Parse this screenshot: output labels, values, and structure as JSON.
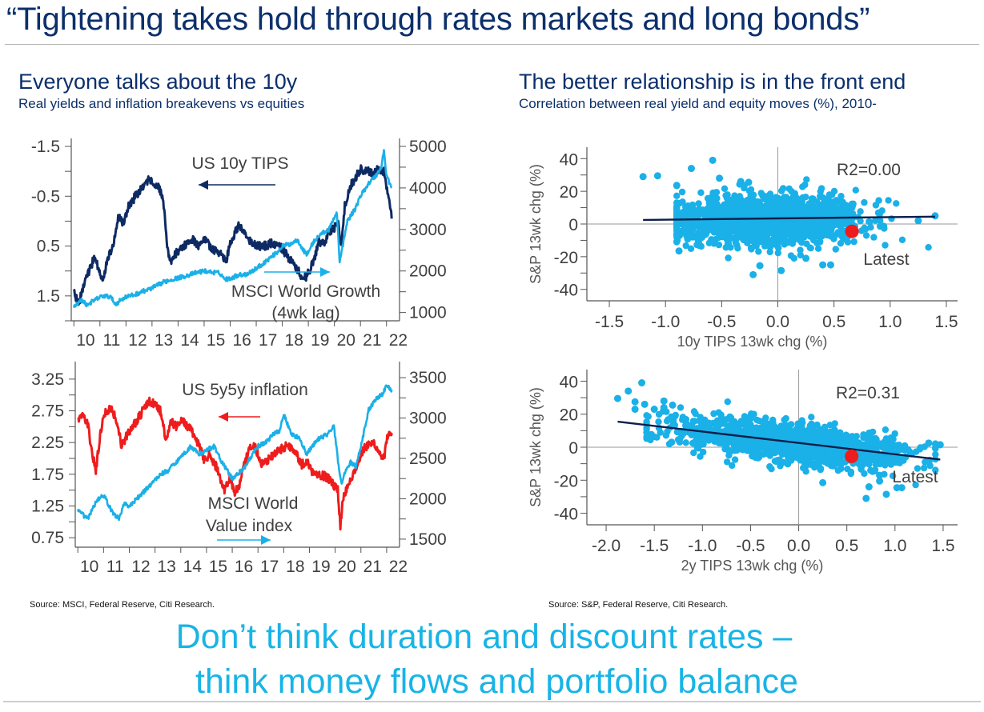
{
  "page": {
    "title": "“Tightening takes hold through rates markets and long bonds”",
    "left_panel": {
      "heading": "Everyone talks about the 10y",
      "subheading": "Real yields and inflation breakevens vs equities",
      "source": "Source: MSCI, Federal Reserve, Citi Research."
    },
    "right_panel": {
      "heading": "The better relationship is in the front end",
      "subheading": "Correlation between real yield and equity moves (%), 2010-",
      "source": "Source: S&P, Federal Reserve, Citi Research."
    },
    "tagline": {
      "line1": "Don’t think duration and discount rates –",
      "line2": "think money flows and portfolio balance"
    },
    "colors": {
      "navy": "#0b2f6b",
      "dark_series": "#0e2a63",
      "light_blue": "#1ab0e8",
      "red": "#ee1c1c",
      "axis": "#555555"
    }
  },
  "chart_data": [
    {
      "id": "tips-vs-growth",
      "type": "line",
      "title": "",
      "x_tick_labels": [
        "10",
        "11",
        "12",
        "13",
        "14",
        "15",
        "16",
        "17",
        "18",
        "19",
        "20",
        "21",
        "22"
      ],
      "x_range": [
        2009.9,
        2022.5
      ],
      "left_axis": {
        "inverted": true,
        "range": [
          -1.5,
          2.0
        ],
        "ticks": [
          -1.5,
          -0.5,
          0.5,
          1.5
        ],
        "minor_step": 0.5
      },
      "right_axis": {
        "range": [
          800,
          5000
        ],
        "ticks": [
          1000,
          2000,
          3000,
          4000,
          5000
        ],
        "minor_step": 500
      },
      "annotations": [
        {
          "text": "US 10y TIPS",
          "color": "#0e2a63",
          "arrow": "left"
        },
        {
          "text": "MSCI World Growth",
          "color": "#1ab0e8",
          "arrow": "right"
        },
        {
          "text": "(4wk lag)",
          "color": "#1ab0e8"
        }
      ],
      "series": [
        {
          "name": "US 10y TIPS",
          "axis": "left",
          "color": "#0e2a63",
          "x": [
            2010.0,
            2010.2,
            2010.4,
            2010.6,
            2010.8,
            2010.95,
            2011.1,
            2011.3,
            2011.5,
            2011.7,
            2011.9,
            2012.1,
            2012.3,
            2012.5,
            2012.7,
            2012.9,
            2013.1,
            2013.3,
            2013.45,
            2013.6,
            2013.7,
            2013.9,
            2014.2,
            2014.5,
            2014.8,
            2015.0,
            2015.3,
            2015.6,
            2015.85,
            2016.0,
            2016.3,
            2016.5,
            2016.8,
            2017.0,
            2017.3,
            2017.6,
            2017.9,
            2018.2,
            2018.5,
            2018.8,
            2018.95,
            2019.2,
            2019.4,
            2019.6,
            2019.8,
            2020.0,
            2020.15,
            2020.25,
            2020.4,
            2020.6,
            2020.8,
            2021.0,
            2021.3,
            2021.5,
            2021.7,
            2021.9,
            2022.1,
            2022.2
          ],
          "y": [
            1.45,
            1.65,
            1.2,
            1.0,
            0.7,
            0.95,
            1.2,
            0.75,
            0.5,
            -0.1,
            0.05,
            -0.3,
            -0.45,
            -0.6,
            -0.75,
            -0.85,
            -0.7,
            -0.65,
            -0.3,
            0.6,
            0.85,
            0.65,
            0.5,
            0.35,
            0.5,
            0.35,
            0.55,
            0.65,
            0.8,
            0.45,
            0.1,
            0.15,
            0.45,
            0.5,
            0.5,
            0.45,
            0.5,
            0.7,
            0.9,
            1.15,
            1.1,
            0.8,
            0.4,
            0.45,
            0.2,
            0.15,
            -0.05,
            0.55,
            -0.3,
            -0.7,
            -0.85,
            -1.05,
            -1.0,
            -0.95,
            -1.05,
            -1.0,
            -0.45,
            -0.05
          ]
        },
        {
          "name": "MSCI World Growth (4wk lag)",
          "axis": "right",
          "color": "#1ab0e8",
          "x": [
            2010.0,
            2010.3,
            2010.5,
            2010.8,
            2011.1,
            2011.4,
            2011.6,
            2011.8,
            2012.0,
            2012.3,
            2012.6,
            2012.9,
            2013.2,
            2013.5,
            2013.8,
            2014.1,
            2014.4,
            2014.7,
            2015.0,
            2015.3,
            2015.6,
            2015.8,
            2016.0,
            2016.3,
            2016.6,
            2016.9,
            2017.2,
            2017.5,
            2017.8,
            2018.0,
            2018.3,
            2018.6,
            2018.8,
            2018.95,
            2019.2,
            2019.5,
            2019.8,
            2020.0,
            2020.1,
            2020.2,
            2020.35,
            2020.5,
            2020.8,
            2021.0,
            2021.3,
            2021.6,
            2021.8,
            2021.9,
            2022.0,
            2022.2
          ],
          "y": [
            1150,
            1300,
            1180,
            1300,
            1400,
            1380,
            1200,
            1300,
            1380,
            1420,
            1500,
            1560,
            1650,
            1750,
            1800,
            1850,
            1900,
            1960,
            2000,
            1970,
            1950,
            1800,
            1820,
            1900,
            1920,
            2020,
            2150,
            2300,
            2450,
            2600,
            2650,
            2750,
            2500,
            2400,
            2700,
            2900,
            3000,
            3300,
            3400,
            2200,
            2700,
            3200,
            3500,
            3800,
            4100,
            4300,
            4500,
            4900,
            4300,
            4000
          ]
        }
      ]
    },
    {
      "id": "inflation-vs-value",
      "type": "line",
      "title": "",
      "x_tick_labels": [
        "10",
        "11",
        "12",
        "13",
        "14",
        "15",
        "16",
        "17",
        "18",
        "19",
        "20",
        "21",
        "22"
      ],
      "x_range": [
        2009.9,
        2022.5
      ],
      "left_axis": {
        "inverted": false,
        "range": [
          0.6,
          3.4
        ],
        "ticks": [
          0.75,
          1.25,
          1.75,
          2.25,
          2.75,
          3.25
        ],
        "minor_step": 0.25
      },
      "right_axis": {
        "range": [
          1400,
          3600
        ],
        "ticks": [
          1500,
          2000,
          2500,
          3000,
          3500
        ],
        "minor_step": 250
      },
      "annotations": [
        {
          "text": "US 5y5y inflation",
          "color": "#ee1c1c",
          "arrow": "left"
        },
        {
          "text": "MSCI World",
          "color": "#1ab0e8"
        },
        {
          "text": "Value index",
          "color": "#1ab0e8",
          "arrow": "right"
        }
      ],
      "series": [
        {
          "name": "US 5y5y inflation",
          "axis": "left",
          "color": "#ee1c1c",
          "x": [
            2010.0,
            2010.2,
            2010.4,
            2010.55,
            2010.7,
            2010.85,
            2011.0,
            2011.3,
            2011.5,
            2011.7,
            2011.9,
            2012.1,
            2012.3,
            2012.6,
            2012.8,
            2013.0,
            2013.2,
            2013.45,
            2013.6,
            2013.8,
            2014.0,
            2014.3,
            2014.6,
            2014.9,
            2015.1,
            2015.4,
            2015.7,
            2015.9,
            2016.1,
            2016.3,
            2016.5,
            2016.7,
            2016.9,
            2017.1,
            2017.3,
            2017.6,
            2017.9,
            2018.1,
            2018.4,
            2018.7,
            2018.9,
            2019.1,
            2019.4,
            2019.7,
            2019.9,
            2020.1,
            2020.2,
            2020.3,
            2020.5,
            2020.7,
            2020.9,
            2021.1,
            2021.3,
            2021.5,
            2021.7,
            2021.9,
            2022.0,
            2022.2
          ],
          "y": [
            2.6,
            2.7,
            2.5,
            2.1,
            1.8,
            2.3,
            2.7,
            2.8,
            2.6,
            2.2,
            2.35,
            2.5,
            2.6,
            2.8,
            2.9,
            2.85,
            2.75,
            2.25,
            2.6,
            2.5,
            2.6,
            2.5,
            2.3,
            2.0,
            2.05,
            1.85,
            1.5,
            1.7,
            1.45,
            1.6,
            1.95,
            2.15,
            2.2,
            1.9,
            1.95,
            2.05,
            2.15,
            2.2,
            2.15,
            1.9,
            1.95,
            1.8,
            1.75,
            1.7,
            1.6,
            1.5,
            0.95,
            1.35,
            1.6,
            1.75,
            1.95,
            2.15,
            2.2,
            2.25,
            2.1,
            2.0,
            2.3,
            2.4
          ]
        },
        {
          "name": "MSCI World Value index",
          "axis": "right",
          "color": "#1ab0e8",
          "x": [
            2010.0,
            2010.2,
            2010.4,
            2010.6,
            2010.8,
            2011.0,
            2011.3,
            2011.6,
            2011.8,
            2012.0,
            2012.3,
            2012.6,
            2012.9,
            2013.2,
            2013.5,
            2013.8,
            2014.1,
            2014.4,
            2014.7,
            2015.0,
            2015.3,
            2015.6,
            2015.8,
            2016.0,
            2016.2,
            2016.5,
            2016.8,
            2017.0,
            2017.3,
            2017.6,
            2017.85,
            2018.0,
            2018.3,
            2018.6,
            2018.9,
            2019.1,
            2019.4,
            2019.7,
            2019.95,
            2020.15,
            2020.25,
            2020.4,
            2020.6,
            2020.8,
            2021.0,
            2021.3,
            2021.6,
            2021.85,
            2022.0,
            2022.2
          ],
          "y": [
            1850,
            1800,
            1750,
            1900,
            2000,
            2050,
            1850,
            1750,
            1950,
            1900,
            2000,
            2100,
            2200,
            2300,
            2350,
            2450,
            2550,
            2650,
            2550,
            2600,
            2650,
            2450,
            2350,
            2250,
            2300,
            2400,
            2550,
            2650,
            2700,
            2800,
            2850,
            3050,
            2800,
            2750,
            2550,
            2650,
            2750,
            2800,
            2900,
            2350,
            2200,
            2350,
            2450,
            2400,
            2650,
            3100,
            3250,
            3300,
            3400,
            3350
          ]
        }
      ]
    },
    {
      "id": "scatter-10y-tips",
      "type": "scatter",
      "xlabel": "10y TIPS 13wk chg (%)",
      "ylabel": "S&P 13wk chg (%)",
      "xlim": [
        -1.7,
        1.6
      ],
      "ylim": [
        -47,
        47
      ],
      "x_ticks": [
        -1.5,
        -1.0,
        -0.5,
        0.0,
        0.5,
        1.0,
        1.5
      ],
      "x_tick_labels": [
        "-1.5",
        "-1.0",
        "-0.5",
        "0.0",
        "0.5",
        "1.0",
        "1.5"
      ],
      "y_ticks": [
        -40,
        -20,
        0,
        20,
        40
      ],
      "y_minor_step": 10,
      "r2_label": "R2=0.00",
      "latest": {
        "x": 0.66,
        "y": -4.5,
        "label": "Latest",
        "color": "#ee1c1c"
      },
      "regression": {
        "x": [
          -1.2,
          1.4
        ],
        "y": [
          2.5,
          4.5
        ]
      },
      "cloud": {
        "x_center": -0.1,
        "x_spread": 0.42,
        "y_slope": 0.8,
        "y_intercept": 3.0,
        "y_spread": 7.5,
        "n": 1500
      },
      "outliers": [
        [
          -1.2,
          29
        ],
        [
          -1.07,
          29.5
        ],
        [
          -0.9,
          23.5
        ],
        [
          -0.77,
          34
        ],
        [
          -0.58,
          39
        ],
        [
          -0.52,
          28
        ],
        [
          -0.33,
          26
        ],
        [
          -0.26,
          25.5
        ],
        [
          -0.3,
          23.5
        ],
        [
          -0.22,
          -31
        ],
        [
          -0.16,
          -25.5
        ],
        [
          0.03,
          -28.5
        ],
        [
          0.25,
          -21
        ],
        [
          0.4,
          -25
        ],
        [
          0.47,
          -25
        ],
        [
          -0.88,
          -16.5
        ],
        [
          -0.78,
          8
        ],
        [
          -0.7,
          9
        ],
        [
          1.4,
          5
        ],
        [
          1.25,
          2
        ],
        [
          0.78,
          -3
        ]
      ],
      "point_color": "#1ab0e8",
      "line_color": "#0b1f4a"
    },
    {
      "id": "scatter-2y-tips",
      "type": "scatter",
      "xlabel": "2y TIPS 13wk chg (%)",
      "ylabel": "S&P 13wk chg (%)",
      "xlim": [
        -2.2,
        1.65
      ],
      "ylim": [
        -47,
        47
      ],
      "x_ticks": [
        -2.0,
        -1.5,
        -1.0,
        -0.5,
        0.0,
        0.5,
        1.0,
        1.5
      ],
      "x_tick_labels": [
        "-2.0",
        "-1.5",
        "-1.0",
        "-0.5",
        "0.0",
        "0.5",
        "1.0",
        "1.5"
      ],
      "y_ticks": [
        -40,
        -20,
        0,
        20,
        40
      ],
      "y_minor_step": 10,
      "r2_label": "R2=0.31",
      "latest": {
        "x": 0.55,
        "y": -5.5,
        "label": "Latest",
        "color": "#ee1c1c"
      },
      "regression": {
        "x": [
          -1.88,
          1.47
        ],
        "y": [
          15.5,
          -7.5
        ]
      },
      "cloud": {
        "x_center": -0.1,
        "x_spread": 0.55,
        "y_slope": -6.9,
        "y_intercept": 2.5,
        "y_spread": 5.5,
        "n": 1500
      },
      "outliers": [
        [
          -1.88,
          29.5
        ],
        [
          -1.77,
          34
        ],
        [
          -1.63,
          39
        ],
        [
          -1.7,
          27.5
        ],
        [
          -1.7,
          23
        ],
        [
          -1.6,
          26
        ],
        [
          -1.5,
          23
        ],
        [
          -1.4,
          28
        ],
        [
          -1.31,
          25.5
        ],
        [
          -1.4,
          24
        ],
        [
          -1.32,
          3
        ],
        [
          -0.8,
          17.5
        ],
        [
          -0.5,
          17.5
        ],
        [
          0.25,
          -21.5
        ],
        [
          0.7,
          -31
        ],
        [
          0.91,
          -28.5
        ],
        [
          0.73,
          -24
        ],
        [
          0.84,
          -17
        ],
        [
          0.84,
          -20.5
        ],
        [
          1.02,
          -24.5
        ],
        [
          1.07,
          -24.5
        ],
        [
          1.35,
          2.5
        ],
        [
          1.47,
          1.5
        ],
        [
          1.42,
          2
        ]
      ],
      "point_color": "#1ab0e8",
      "line_color": "#0b1f4a"
    }
  ]
}
